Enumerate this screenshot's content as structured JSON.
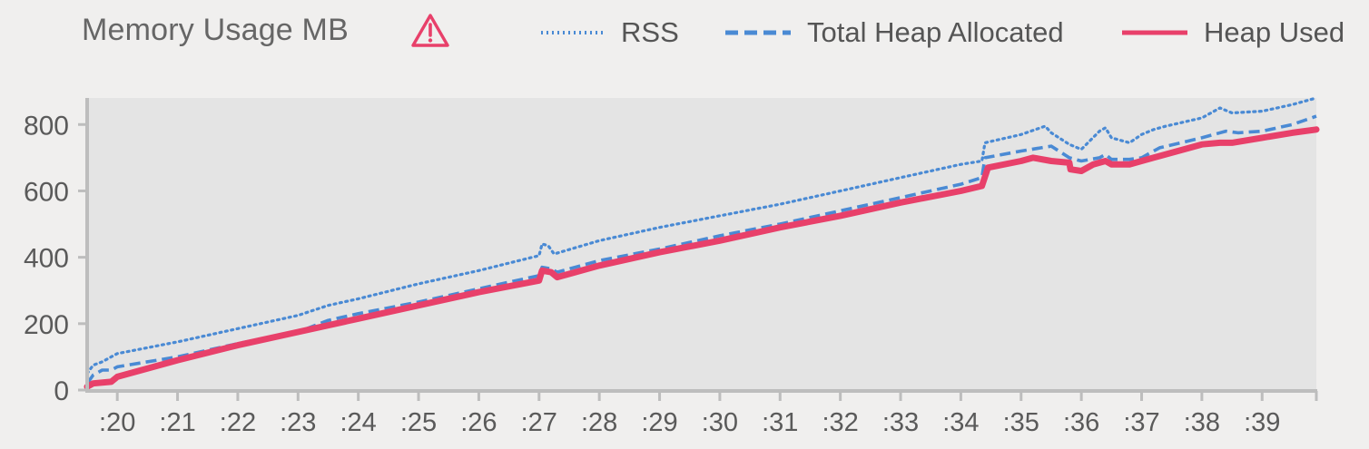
{
  "title": "Memory Usage MB",
  "warning_icon": "warning-triangle-icon",
  "legend": [
    {
      "label": "RSS",
      "style": "dotted",
      "color": "#4a8ad4"
    },
    {
      "label": "Total Heap Allocated",
      "style": "dashed",
      "color": "#4a8ad4"
    },
    {
      "label": "Heap Used",
      "style": "solid",
      "color": "#e8406a"
    }
  ],
  "colors": {
    "background": "#f0efee",
    "plot_background": "#e4e4e4",
    "rss": "#4a8ad4",
    "heap_total": "#4a8ad4",
    "heap_used": "#e8406a",
    "axis": "#bdbdbd",
    "warning": "#e8406a"
  },
  "chart_data": {
    "type": "line",
    "title": "Memory Usage MB",
    "xlabel": "",
    "ylabel": "",
    "ylim": [
      0,
      880
    ],
    "xlim": [
      19.5,
      39.9
    ],
    "grid": false,
    "legend_position": "top",
    "yticks": [
      0,
      200,
      400,
      600,
      800
    ],
    "xticks": [
      ":20",
      ":21",
      ":22",
      ":23",
      ":24",
      ":25",
      ":26",
      ":27",
      ":28",
      ":29",
      ":30",
      ":31",
      ":32",
      ":33",
      ":34",
      ":35",
      ":36",
      ":37",
      ":38",
      ":39"
    ],
    "xtick_values": [
      20,
      21,
      22,
      23,
      24,
      25,
      26,
      27,
      28,
      29,
      30,
      31,
      32,
      33,
      34,
      35,
      36,
      37,
      38,
      39
    ],
    "series": [
      {
        "name": "RSS",
        "style": "dotted",
        "x": [
          19.5,
          19.6,
          19.75,
          19.9,
          20.0,
          21.0,
          22.0,
          23.0,
          23.5,
          24.0,
          25.0,
          26.0,
          27.0,
          27.05,
          27.15,
          27.25,
          28.0,
          29.0,
          30.0,
          31.0,
          32.0,
          33.0,
          34.0,
          34.35,
          34.4,
          35.0,
          35.4,
          35.5,
          35.8,
          36.0,
          36.3,
          36.4,
          36.5,
          36.8,
          37.0,
          37.2,
          37.4,
          38.0,
          38.3,
          38.5,
          39.0,
          39.5,
          39.9
        ],
        "y": [
          50,
          75,
          85,
          100,
          110,
          145,
          185,
          225,
          255,
          275,
          320,
          360,
          405,
          440,
          435,
          410,
          450,
          490,
          525,
          560,
          600,
          640,
          680,
          690,
          745,
          770,
          795,
          775,
          740,
          725,
          780,
          790,
          760,
          745,
          770,
          785,
          795,
          820,
          850,
          835,
          840,
          860,
          880
        ]
      },
      {
        "name": "Total Heap Allocated",
        "style": "dashed",
        "x": [
          19.5,
          19.6,
          19.75,
          19.9,
          20.0,
          21.0,
          22.0,
          23.0,
          23.5,
          24.0,
          25.0,
          26.0,
          27.0,
          27.05,
          27.2,
          27.3,
          28.0,
          29.0,
          30.0,
          31.0,
          32.0,
          33.0,
          34.0,
          34.35,
          34.4,
          35.0,
          35.5,
          35.8,
          36.0,
          36.3,
          36.4,
          36.5,
          36.8,
          37.0,
          37.3,
          38.0,
          38.4,
          38.6,
          39.0,
          39.5,
          39.9
        ],
        "y": [
          20,
          45,
          60,
          60,
          70,
          100,
          140,
          175,
          210,
          230,
          265,
          305,
          345,
          370,
          365,
          355,
          390,
          425,
          465,
          500,
          540,
          580,
          620,
          640,
          700,
          720,
          735,
          700,
          690,
          700,
          710,
          695,
          695,
          700,
          730,
          760,
          780,
          775,
          780,
          800,
          825
        ]
      },
      {
        "name": "Heap Used",
        "style": "solid",
        "x": [
          19.5,
          19.6,
          19.9,
          20.0,
          21.0,
          22.0,
          23.0,
          24.0,
          25.0,
          26.0,
          27.0,
          27.05,
          27.2,
          27.3,
          28.0,
          29.0,
          30.0,
          31.0,
          32.0,
          33.0,
          34.0,
          34.35,
          34.45,
          35.0,
          35.2,
          35.5,
          35.8,
          35.82,
          36.0,
          36.2,
          36.4,
          36.5,
          36.8,
          37.0,
          37.3,
          38.0,
          38.3,
          38.5,
          39.0,
          39.5,
          39.9
        ],
        "y": [
          10,
          20,
          25,
          40,
          90,
          135,
          175,
          215,
          255,
          295,
          330,
          360,
          355,
          340,
          375,
          415,
          450,
          490,
          525,
          565,
          600,
          615,
          670,
          690,
          700,
          690,
          685,
          665,
          660,
          680,
          690,
          680,
          680,
          690,
          705,
          740,
          745,
          745,
          760,
          775,
          785
        ]
      }
    ]
  }
}
